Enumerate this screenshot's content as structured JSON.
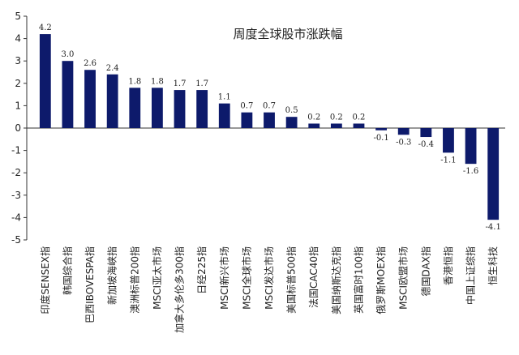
{
  "chart_data": {
    "type": "bar",
    "title": "周度全球股市涨跌幅",
    "xlabel": "",
    "ylabel": "",
    "ylim": [
      -5,
      5
    ],
    "yticks": [
      5,
      4,
      3,
      2,
      1,
      0,
      -1,
      -2,
      -3,
      -4,
      -5
    ],
    "grid": false,
    "legend": "none",
    "bar_color": "#0d1a6b",
    "categories": [
      "印度SENSEX指",
      "韩国综合指",
      "巴西IBOVESPA指",
      "新加坡海峡指",
      "澳洲标普200指",
      "MSCI亚太市场",
      "加拿大多伦多300指",
      "日经225指",
      "MSCI新兴市场",
      "MSCI全球市场",
      "MSCI发达市场",
      "美国标普500指",
      "法国CAC40指",
      "美国纳斯达克指",
      "英国富时100指",
      "俄罗斯MOEX指",
      "MSCI欧盟市场",
      "德国DAX指",
      "香港恒指",
      "中国上证综指",
      "恒生科技"
    ],
    "values": [
      4.2,
      3.0,
      2.6,
      2.4,
      1.8,
      1.8,
      1.7,
      1.7,
      1.1,
      0.7,
      0.7,
      0.5,
      0.2,
      0.2,
      0.2,
      -0.1,
      -0.3,
      -0.4,
      -1.1,
      -1.6,
      -4.1
    ],
    "data_labels": [
      "4.2",
      "3.0",
      "2.6",
      "2.4",
      "1.8",
      "1.8",
      "1.7",
      "1.7",
      "1.1",
      "0.7",
      "0.7",
      "0.5",
      "0.2",
      "0.2",
      "0.2",
      "-0.1",
      "-0.3",
      "-0.4",
      "-1.1",
      "-1.6",
      "-4.1"
    ]
  }
}
